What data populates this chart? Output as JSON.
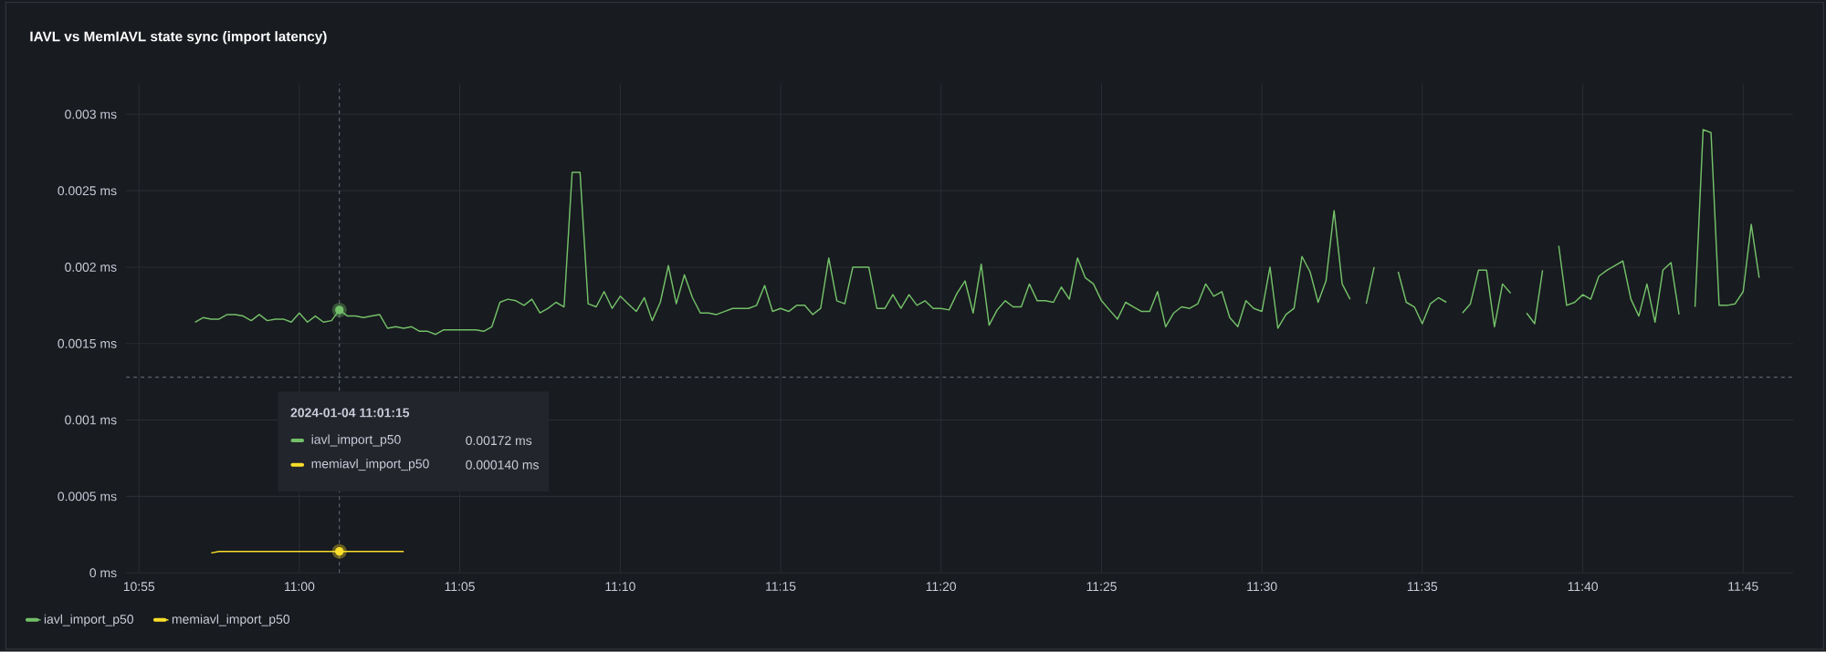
{
  "chart_data": {
    "type": "line",
    "title": "IAVL vs MemIAVL state sync (import latency)",
    "xlim": [
      10.91,
      11.776
    ],
    "ylim": [
      0,
      0.0032
    ],
    "xticks": [
      {
        "value": 10.9167,
        "label": "10:55"
      },
      {
        "value": 11.0,
        "label": "11:00"
      },
      {
        "value": 11.0833,
        "label": "11:05"
      },
      {
        "value": 11.1667,
        "label": "11:10"
      },
      {
        "value": 11.25,
        "label": "11:15"
      },
      {
        "value": 11.3333,
        "label": "11:20"
      },
      {
        "value": 11.4167,
        "label": "11:25"
      },
      {
        "value": 11.5,
        "label": "11:30"
      },
      {
        "value": 11.5833,
        "label": "11:35"
      },
      {
        "value": 11.6667,
        "label": "11:40"
      },
      {
        "value": 11.75,
        "label": "11:45"
      }
    ],
    "yticks": [
      {
        "value": 0,
        "label": "0 ms"
      },
      {
        "value": 0.0005,
        "label": "0.0005 ms"
      },
      {
        "value": 0.001,
        "label": "0.001 ms"
      },
      {
        "value": 0.0015,
        "label": "0.0015 ms"
      },
      {
        "value": 0.002,
        "label": "0.002 ms"
      },
      {
        "value": 0.0025,
        "label": "0.0025 ms"
      },
      {
        "value": 0.003,
        "label": "0.003 ms"
      }
    ],
    "grid": true,
    "legend": "bottom left",
    "marker": "none",
    "line_style": "solid",
    "series": [
      {
        "name": "iavl_import_p50",
        "color": "#73bf69",
        "x": [
          10.9458,
          10.95,
          10.9542,
          10.9583,
          10.9625,
          10.9667,
          10.9708,
          10.975,
          10.9792,
          10.9833,
          10.9875,
          10.9917,
          10.9958,
          11.0,
          11.0042,
          11.0083,
          11.0125,
          11.0167,
          11.0208,
          11.025,
          11.0292,
          11.0333,
          11.0375,
          11.0417,
          11.0458,
          11.05,
          11.0542,
          11.0583,
          11.0625,
          11.0667,
          11.0708,
          11.075,
          11.0792,
          11.0833,
          11.0875,
          11.0917,
          11.0958,
          11.1,
          11.1042,
          11.1083,
          11.1125,
          11.1167,
          11.1208,
          11.125,
          11.1292,
          11.1333,
          11.1375,
          11.1417,
          11.1458,
          11.15,
          11.1542,
          11.1583,
          11.1625,
          11.1667,
          11.1708,
          11.175,
          11.1792,
          11.1833,
          11.1875,
          11.1917,
          11.1958,
          11.2,
          11.2042,
          11.2083,
          11.2125,
          11.2167,
          11.2208,
          11.225,
          11.2292,
          11.2333,
          11.2375,
          11.2417,
          11.2458,
          11.25,
          11.2542,
          11.2583,
          11.2625,
          11.2667,
          11.2708,
          11.275,
          11.2792,
          11.2833,
          11.2875,
          11.2917,
          11.2958,
          11.3,
          11.3042,
          11.3083,
          11.3125,
          11.3167,
          11.3208,
          11.325,
          11.3292,
          11.3333,
          11.3375,
          11.3417,
          11.3458,
          11.35,
          11.3542,
          11.3583,
          11.3625,
          11.3667,
          11.3708,
          11.375,
          11.3792,
          11.3833,
          11.3875,
          11.3917,
          11.3958,
          11.4,
          11.4042,
          11.4083,
          11.4125,
          11.4167,
          11.4208,
          11.425,
          11.4292,
          11.4333,
          11.4375,
          11.4417,
          11.4458,
          11.45,
          11.4542,
          11.4583,
          11.4625,
          11.4667,
          11.4708,
          11.475,
          11.4792,
          11.4833,
          11.4875,
          11.4917,
          11.4958,
          11.5,
          11.5042,
          11.5083,
          11.5125,
          11.5167,
          11.5208,
          11.525,
          11.5292,
          11.5333,
          11.5375,
          11.5417,
          11.5458,
          11.55,
          11.5542,
          11.5583,
          11.5625,
          11.5667,
          11.5708,
          11.575,
          11.5792,
          11.5833,
          11.5875,
          11.5917,
          11.5958,
          11.6,
          11.6042,
          11.6083,
          11.6125,
          11.6167,
          11.6208,
          11.625,
          11.6292,
          11.6333,
          11.6375,
          11.6417,
          11.6458,
          11.65,
          11.6542,
          11.6583,
          11.6625,
          11.6667,
          11.6708,
          11.675,
          11.6792,
          11.6833,
          11.6875,
          11.6917,
          11.6958,
          11.7,
          11.7042,
          11.7083,
          11.7125,
          11.7167,
          11.7208,
          11.725,
          11.7292,
          11.7333,
          11.7375,
          11.7417,
          11.7458,
          11.75,
          11.7542,
          11.7583
        ],
        "values": [
          0.00164,
          0.00167,
          0.00166,
          0.00166,
          0.00169,
          0.00169,
          0.00168,
          0.00165,
          0.00169,
          0.00165,
          0.00166,
          0.00166,
          0.00164,
          0.0017,
          0.00164,
          0.00168,
          0.00164,
          0.00165,
          0.00172,
          0.00168,
          0.00168,
          0.00167,
          0.00168,
          0.00169,
          0.0016,
          0.00161,
          0.0016,
          0.00161,
          0.00158,
          0.00158,
          0.00156,
          0.00159,
          0.00159,
          0.00159,
          0.00159,
          0.00159,
          0.00158,
          0.00161,
          0.00177,
          0.00179,
          0.00178,
          0.00175,
          0.00179,
          0.0017,
          0.00173,
          0.00177,
          0.00174,
          0.00262,
          0.00262,
          0.00176,
          0.00174,
          0.00184,
          0.00173,
          0.00181,
          0.00176,
          0.00171,
          0.0018,
          0.00165,
          0.00177,
          0.00201,
          0.00176,
          0.00195,
          0.0018,
          0.0017,
          0.0017,
          0.00169,
          0.00171,
          0.00173,
          0.00173,
          0.00173,
          0.00175,
          0.00188,
          0.00171,
          0.00173,
          0.00171,
          0.00175,
          0.00175,
          0.00169,
          0.00173,
          0.00206,
          0.00178,
          0.00176,
          0.002,
          0.002,
          0.002,
          0.00173,
          0.00173,
          0.00182,
          0.00173,
          0.00182,
          0.00175,
          0.00178,
          0.00173,
          0.00173,
          0.00172,
          0.00183,
          0.00191,
          0.0017,
          0.00202,
          0.00162,
          0.00172,
          0.00178,
          0.00174,
          0.00174,
          0.00189,
          0.00178,
          0.00178,
          0.00177,
          0.00187,
          0.00179,
          0.00206,
          0.00193,
          0.00189,
          0.00178,
          0.00172,
          0.00166,
          0.00177,
          0.00174,
          0.00171,
          0.00171,
          0.00184,
          0.00161,
          0.0017,
          0.00174,
          0.00173,
          0.00176,
          0.00189,
          0.00181,
          0.00184,
          0.00167,
          0.00161,
          0.00178,
          0.00173,
          0.00171,
          0.002,
          0.0016,
          0.00169,
          0.00173,
          0.00207,
          0.00197,
          0.00177,
          0.00191,
          0.00237,
          0.00189,
          0.00179,
          null,
          0.00176,
          0.002,
          null,
          null,
          0.00197,
          0.00177,
          0.00174,
          0.00163,
          0.00176,
          0.0018,
          0.00177,
          null,
          0.0017,
          0.00176,
          0.00198,
          0.00198,
          0.00161,
          0.00189,
          0.00183,
          null,
          0.0017,
          0.00163,
          0.00198,
          null,
          0.00214,
          0.00175,
          0.00177,
          0.00182,
          0.00179,
          0.00194,
          0.00198,
          0.00201,
          0.00204,
          0.00179,
          0.00168,
          0.00189,
          0.00164,
          0.00198,
          0.00203,
          0.00169,
          null,
          0.00174,
          0.0029,
          0.00288,
          0.00175,
          0.00175,
          0.00176,
          0.00184,
          0.00228,
          0.00193
        ]
      },
      {
        "name": "memiavl_import_p50",
        "color": "#fade2a",
        "x": [
          10.9542,
          10.9583,
          11.0208,
          11.0542
        ],
        "values": [
          0.00013,
          0.00014,
          0.00014,
          0.00014
        ]
      }
    ],
    "ref_lines": [
      {
        "axis": "x",
        "value": 11.0208,
        "color": "#5c6370",
        "line_style": "dashed"
      },
      {
        "axis": "y",
        "value": 0.00128,
        "color": "#5c6370",
        "line_style": "dashed"
      }
    ],
    "annotations": [
      "2024-01-04 11:01:15",
      "0.00172 ms",
      "0.000140 ms"
    ]
  }
}
